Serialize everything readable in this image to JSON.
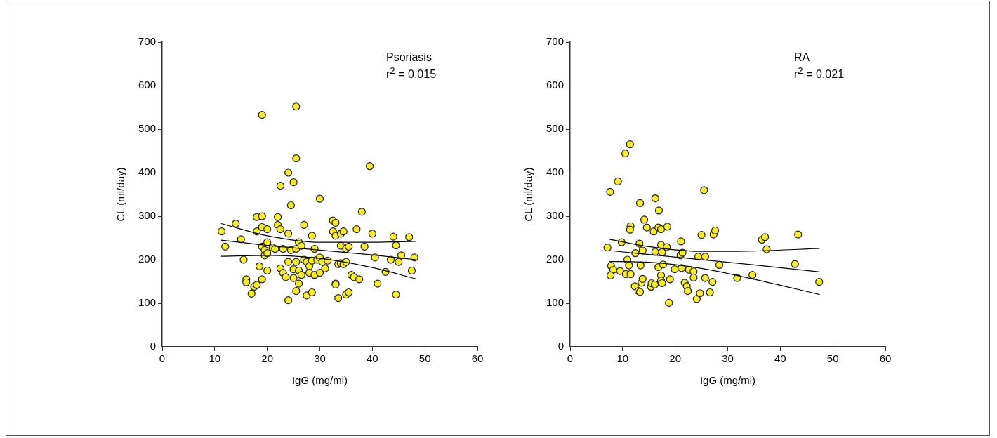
{
  "chart_data": [
    {
      "type": "scatter",
      "xlabel": "IgG (mg/ml)",
      "ylabel": "CL (ml/day)",
      "annotations": [
        "Psoriasis",
        "r$^{2}$ = 0.015"
      ],
      "xlim": [
        0,
        60
      ],
      "xticks": [
        0,
        10,
        20,
        30,
        40,
        50,
        60
      ],
      "ylim": [
        0,
        700
      ],
      "yticks": [
        0,
        100,
        200,
        300,
        400,
        500,
        600,
        700
      ],
      "grid": false,
      "legend": false,
      "marker": "circle",
      "series": [
        {
          "type": "scatter",
          "color": "#f5ec2a",
          "x": [
            11.3,
            12,
            14,
            15,
            15.5,
            16,
            16,
            17,
            17.5,
            18,
            18,
            18,
            18.5,
            19,
            19,
            19,
            19,
            19,
            19.5,
            19.5,
            20,
            20,
            20,
            20,
            21,
            21.5,
            22,
            22,
            22.5,
            22.5,
            22.5,
            23,
            23,
            23.5,
            24,
            24,
            24,
            24,
            24.5,
            24.5,
            25,
            25,
            25,
            25.5,
            25.5,
            25.5,
            25.5,
            25.5,
            26,
            26,
            26,
            26.5,
            26.5,
            27,
            27,
            27.5,
            27.5,
            28,
            28,
            28.5,
            28.5,
            28.5,
            29,
            29,
            29.5,
            30,
            30,
            30,
            30.5,
            31,
            31.5,
            32.5,
            32.5,
            33,
            33,
            33,
            33,
            33.5,
            33.5,
            34,
            34,
            34,
            34.5,
            34.5,
            35,
            35,
            35,
            35.5,
            35.5,
            36,
            36.5,
            37,
            37.5,
            38,
            38.5,
            39.5,
            40,
            40.5,
            41,
            42.5,
            43.5,
            44,
            44.5,
            44.5,
            45,
            45.5,
            47,
            47.5,
            48
          ],
          "values": [
            265,
            230,
            283,
            247,
            200,
            155,
            148,
            122,
            138,
            142,
            265,
            298,
            185,
            533,
            300,
            275,
            230,
            155,
            222,
            210,
            240,
            270,
            175,
            215,
            228,
            225,
            280,
            298,
            370,
            270,
            180,
            225,
            170,
            160,
            107,
            195,
            260,
            400,
            325,
            222,
            378,
            178,
            158,
            552,
            433,
            195,
            225,
            128,
            240,
            175,
            145,
            232,
            165,
            280,
            200,
            118,
            195,
            185,
            170,
            198,
            125,
            255,
            165,
            225,
            200,
            340,
            205,
            170,
            195,
            180,
            198,
            265,
            290,
            285,
            255,
            145,
            143,
            190,
            112,
            260,
            232,
            192,
            265,
            190,
            120,
            225,
            195,
            125,
            230,
            165,
            160,
            270,
            155,
            310,
            230,
            415,
            260,
            205,
            145,
            172,
            200,
            253,
            233,
            120,
            195,
            210,
            252,
            175,
            205
          ]
        },
        {
          "type": "line",
          "color": "#000000",
          "marker": "none",
          "line_style": "solid",
          "x": [
            11.2,
            20,
            30,
            40,
            48.3
          ],
          "values": [
            245,
            233,
            222,
            211,
            200
          ]
        },
        {
          "type": "line",
          "color": "#000000",
          "marker": "none",
          "line_style": "solid",
          "x": [
            11.2,
            20,
            30,
            40,
            48.3
          ],
          "values": [
            208,
            210,
            203,
            182,
            156
          ]
        },
        {
          "type": "line",
          "color": "#000000",
          "marker": "none",
          "line_style": "solid",
          "x": [
            11.2,
            20,
            30,
            40,
            48.3
          ],
          "values": [
            283,
            255,
            240,
            240,
            242
          ]
        }
      ]
    },
    {
      "type": "scatter",
      "xlabel": "IgG (mg/ml)",
      "ylabel": "CL (ml/day)",
      "annotations": [
        "RA",
        "r$^{2}$ = 0.021"
      ],
      "xlim": [
        0,
        60
      ],
      "xticks": [
        0,
        10,
        20,
        30,
        40,
        50,
        60
      ],
      "ylim": [
        0,
        700
      ],
      "yticks": [
        0,
        100,
        200,
        300,
        400,
        500,
        600,
        700
      ],
      "grid": false,
      "legend": false,
      "marker": "circle",
      "series": [
        {
          "type": "scatter",
          "color": "#f5ec2a",
          "x": [
            7.1,
            9.8,
            7.6,
            9.1,
            10.5,
            11.4,
            7.8,
            8.2,
            7.7,
            9.5,
            10.6,
            11.5,
            10.9,
            11.2,
            11.5,
            11.4,
            12.4,
            12.3,
            13,
            13.3,
            13.6,
            13.8,
            13.4,
            13.2,
            13.8,
            13.3,
            14.1,
            14.6,
            16.2,
            16.9,
            15.9,
            16.8,
            17.3,
            18.5,
            16.2,
            17.3,
            17.5,
            18.4,
            16.8,
            17.7,
            17.3,
            17.3,
            17.5,
            15.4,
            15.5,
            16.1,
            19,
            18.8,
            19.9,
            21.2,
            21.1,
            21,
            21.4,
            21.8,
            22.2,
            22.4,
            22.6,
            23.5,
            23.5,
            24.1,
            24.7,
            25,
            25.5,
            24.4,
            25.7,
            25.7,
            26.6,
            27.1,
            28.4,
            27.3,
            27.6,
            31.8,
            34.7,
            36.5,
            37.1,
            37.4,
            43.4,
            42.8,
            47.4
          ],
          "values": [
            228,
            240,
            356,
            380,
            444,
            465,
            186,
            177,
            164,
            174,
            167,
            167,
            200,
            187,
            277,
            269,
            215,
            139,
            128,
            126,
            147,
            156,
            187,
            237,
            221,
            330,
            292,
            274,
            341,
            313,
            265,
            274,
            270,
            276,
            218,
            234,
            217,
            229,
            183,
            189,
            164,
            152,
            146,
            138,
            146,
            143,
            155,
            101,
            178,
            181,
            242,
            210,
            216,
            147,
            139,
            128,
            177,
            173,
            159,
            110,
            123,
            257,
            360,
            207,
            207,
            158,
            125,
            149,
            188,
            258,
            267,
            158,
            165,
            246,
            252,
            224,
            258,
            190,
            149
          ]
        },
        {
          "type": "line",
          "color": "#000000",
          "marker": "none",
          "line_style": "solid",
          "x": [
            7.5,
            15,
            25,
            35,
            47.5
          ],
          "values": [
            221,
            212,
            200,
            188,
            172
          ]
        },
        {
          "type": "line",
          "color": "#000000",
          "marker": "none",
          "line_style": "solid",
          "x": [
            7.5,
            15,
            25,
            35,
            47.5
          ],
          "values": [
            196,
            194,
            180,
            155,
            120
          ]
        },
        {
          "type": "line",
          "color": "#000000",
          "marker": "none",
          "line_style": "solid",
          "x": [
            7.5,
            15,
            25,
            35,
            47.5
          ],
          "values": [
            247,
            230,
            219,
            220,
            226
          ]
        }
      ]
    }
  ]
}
